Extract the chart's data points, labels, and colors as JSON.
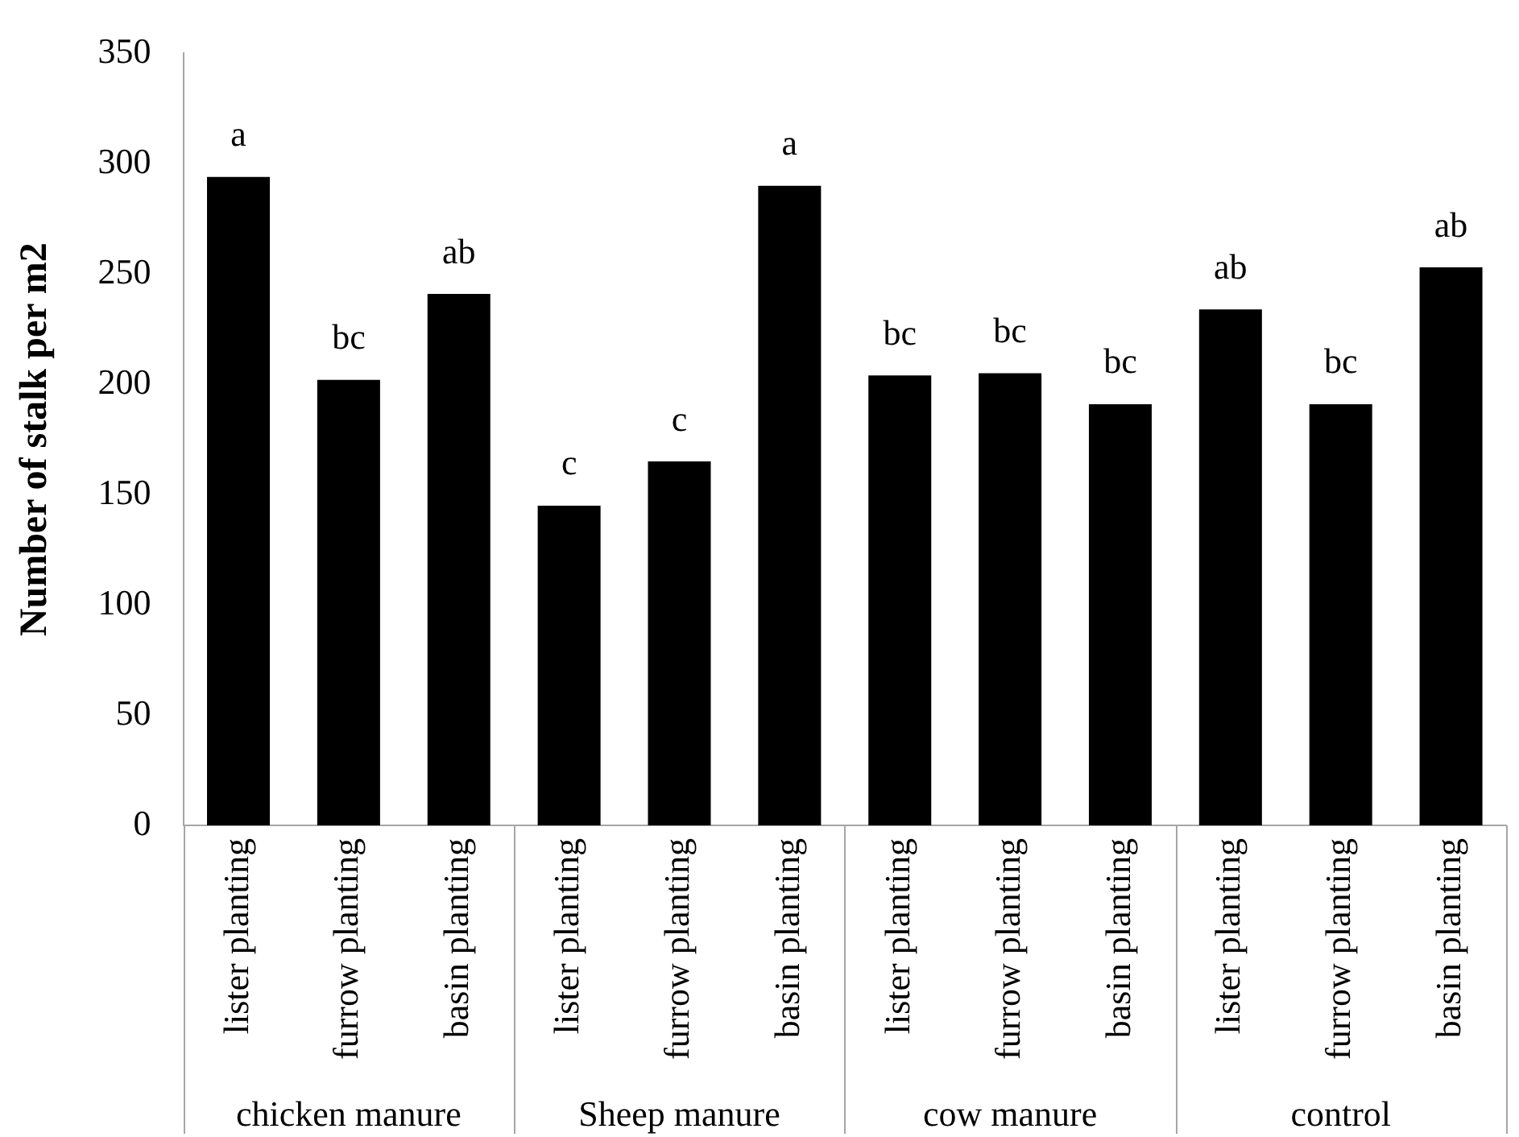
{
  "chart_data": {
    "type": "bar",
    "ylabel": "Number of stalk per m2",
    "categories": [
      "lister planting",
      "furrow planting",
      "basin planting",
      "lister planting",
      "furrow planting",
      "basin planting",
      "lister planting",
      "furrow planting",
      "basin planting",
      "lister planting",
      "furrow planting",
      "basin planting"
    ],
    "values": [
      294,
      202,
      241,
      145,
      165,
      290,
      204,
      205,
      191,
      234,
      191,
      253
    ],
    "value_labels": [
      "a",
      "bc",
      "ab",
      "c",
      "c",
      "a",
      "bc",
      "bc",
      "bc",
      "ab",
      "bc",
      "ab"
    ],
    "color": "#000000",
    "annotations": [
      "chicken manure",
      "Sheep manure",
      "cow manure",
      "control"
    ],
    "ylim": [
      0,
      350
    ],
    "yticks": [
      0,
      50,
      100,
      150,
      200,
      250,
      300,
      350
    ],
    "grid": false,
    "legend": false
  }
}
